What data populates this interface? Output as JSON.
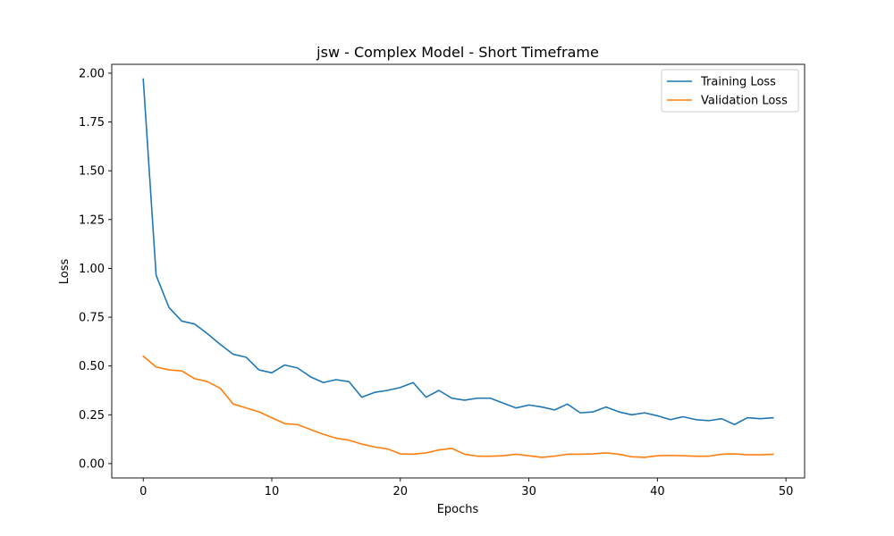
{
  "chart_data": {
    "type": "line",
    "title": "jsw - Complex Model - Short Timeframe",
    "xlabel": "Epochs",
    "ylabel": "Loss",
    "xlim": [
      -2.45,
      51.45
    ],
    "ylim": [
      -0.0735,
      2.0455
    ],
    "xticks": [
      0,
      10,
      20,
      30,
      40,
      50
    ],
    "yticks": [
      0.0,
      0.25,
      0.5,
      0.75,
      1.0,
      1.25,
      1.5,
      1.75,
      2.0
    ],
    "ytick_labels": [
      "0.00",
      "0.25",
      "0.50",
      "0.75",
      "1.00",
      "1.25",
      "1.50",
      "1.75",
      "2.00"
    ],
    "grid": false,
    "legend": "top-right",
    "x": [
      0,
      1,
      2,
      3,
      4,
      5,
      6,
      7,
      8,
      9,
      10,
      11,
      12,
      13,
      14,
      15,
      16,
      17,
      18,
      19,
      20,
      21,
      22,
      23,
      24,
      25,
      26,
      27,
      28,
      29,
      30,
      31,
      32,
      33,
      34,
      35,
      36,
      37,
      38,
      39,
      40,
      41,
      42,
      43,
      44,
      45,
      46,
      47,
      48,
      49
    ],
    "series": [
      {
        "name": "Training Loss",
        "color": "#1f77b4",
        "values": [
          1.97,
          0.965,
          0.8,
          0.73,
          0.715,
          0.665,
          0.61,
          0.56,
          0.545,
          0.48,
          0.465,
          0.505,
          0.49,
          0.445,
          0.415,
          0.43,
          0.42,
          0.34,
          0.365,
          0.375,
          0.39,
          0.415,
          0.34,
          0.375,
          0.335,
          0.325,
          0.335,
          0.335,
          0.31,
          0.285,
          0.3,
          0.29,
          0.275,
          0.305,
          0.26,
          0.265,
          0.29,
          0.265,
          0.25,
          0.26,
          0.245,
          0.225,
          0.24,
          0.225,
          0.22,
          0.23,
          0.2,
          0.235,
          0.23,
          0.235
        ]
      },
      {
        "name": "Validation Loss",
        "color": "#ff7f0e",
        "values": [
          0.55,
          0.495,
          0.48,
          0.475,
          0.435,
          0.42,
          0.385,
          0.305,
          0.285,
          0.265,
          0.235,
          0.205,
          0.2,
          0.175,
          0.15,
          0.13,
          0.12,
          0.1,
          0.085,
          0.075,
          0.05,
          0.048,
          0.055,
          0.07,
          0.078,
          0.048,
          0.038,
          0.038,
          0.04,
          0.048,
          0.04,
          0.032,
          0.038,
          0.048,
          0.048,
          0.05,
          0.055,
          0.048,
          0.035,
          0.032,
          0.04,
          0.042,
          0.04,
          0.038,
          0.038,
          0.048,
          0.05,
          0.045,
          0.045,
          0.048
        ]
      }
    ]
  }
}
